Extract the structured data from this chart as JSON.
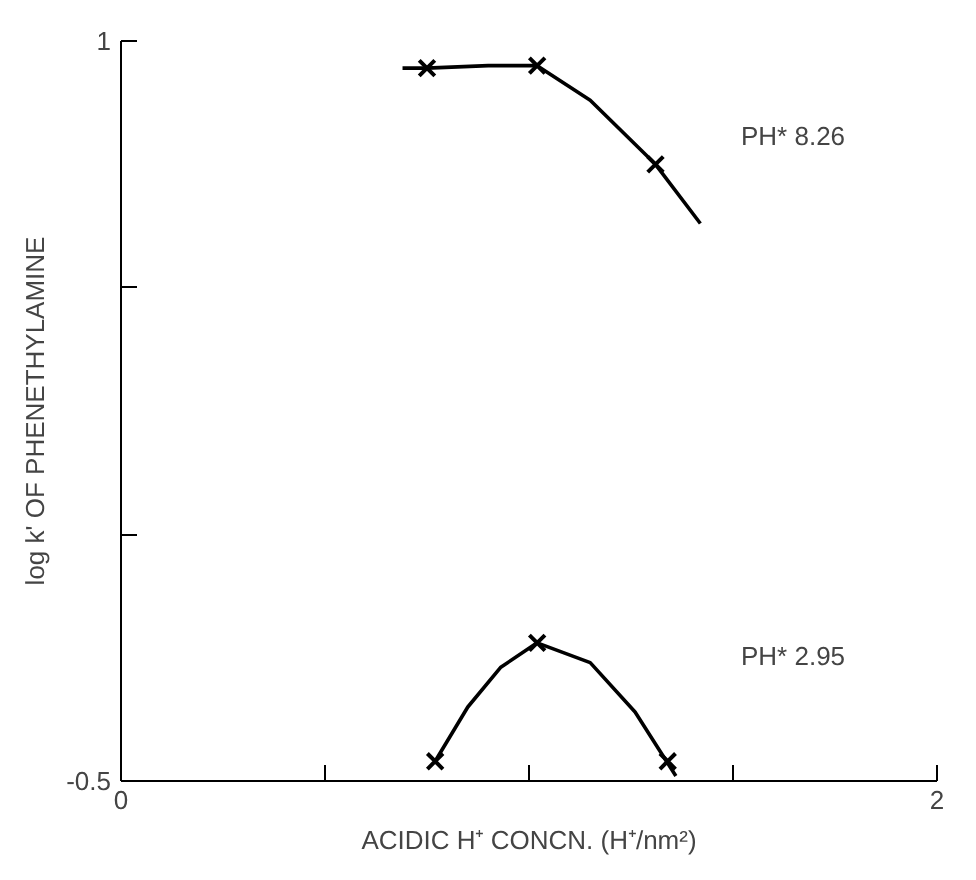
{
  "chart_data": {
    "type": "scatter",
    "xlabel": "ACIDIC H⁺ CONCN. (H⁺/nm²)",
    "ylabel": "log k' OF PHENETHYLAMINE",
    "xlim": [
      0,
      2
    ],
    "ylim": [
      -0.5,
      1
    ],
    "xticks": [
      0,
      {
        "value": 0.5,
        "label": null
      },
      {
        "value": 1,
        "label": null
      },
      {
        "value": 1.5,
        "label": null
      },
      2
    ],
    "yticks": [
      -0.5,
      {
        "value": 0,
        "label": null
      },
      {
        "value": 0.5,
        "label": null
      },
      1
    ],
    "series": [
      {
        "marker": "cross",
        "color": "#000000",
        "x": [
          0.75,
          1.02,
          1.31
        ],
        "values": [
          0.945,
          0.95,
          0.75
        ]
      },
      {
        "type": "line",
        "marker": "none",
        "color": "#000000",
        "x": [
          0.69,
          0.75,
          0.9,
          1.02,
          1.15,
          1.31,
          1.42
        ],
        "values": [
          0.945,
          0.945,
          0.95,
          0.95,
          0.88,
          0.75,
          0.63
        ]
      },
      {
        "marker": "cross",
        "color": "#000000",
        "x": [
          0.77,
          1.02,
          1.34
        ],
        "values": [
          -0.46,
          -0.22,
          -0.46
        ]
      },
      {
        "type": "line",
        "marker": "none",
        "color": "#000000",
        "x": [
          0.77,
          0.85,
          0.93,
          1.02,
          1.15,
          1.26,
          1.36
        ],
        "values": [
          -0.46,
          -0.35,
          -0.27,
          -0.22,
          -0.26,
          -0.36,
          -0.49
        ]
      }
    ],
    "annotations": [
      "PH* 8.26",
      "PH* 2.95"
    ]
  }
}
